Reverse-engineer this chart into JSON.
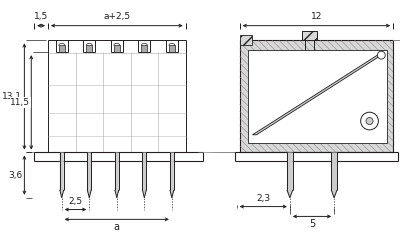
{
  "bg_color": "#ffffff",
  "lc": "#231f20",
  "gc": "#999999",
  "fig_width": 4.0,
  "fig_height": 2.46,
  "dpi": 100,
  "labels": {
    "dim_15": "1,5",
    "dim_a25": "a+2,5",
    "dim_12": "12",
    "dim_131": "13,1",
    "dim_115": "11,5",
    "dim_36": "3,6",
    "dim_25": "2,5",
    "dim_a": "a",
    "dim_23": "2,3",
    "dim_5": "5"
  },
  "n_poles": 5,
  "note_fontsize": 6.5
}
